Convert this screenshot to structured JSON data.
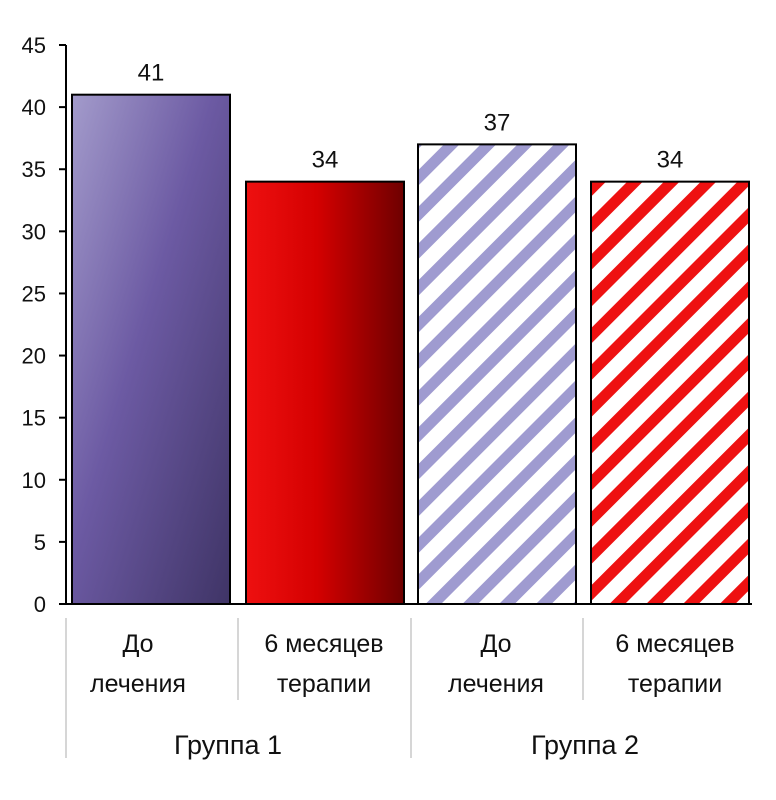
{
  "chart_data": {
    "type": "bar",
    "categories": [
      "До лечения",
      "6 месяцев терапии",
      "До лечения",
      "6 месяцев терапии"
    ],
    "category_lines": [
      [
        "До",
        "лечения"
      ],
      [
        "6 месяцев",
        "терапии"
      ],
      [
        "До",
        "лечения"
      ],
      [
        "6 месяцев",
        "терапии"
      ]
    ],
    "groups": [
      "Группа 1",
      "Группа 2"
    ],
    "values": [
      41,
      34,
      37,
      34
    ],
    "data_labels": [
      "41",
      "34",
      "37",
      "34"
    ],
    "bar_styles": [
      "purple-gradient",
      "red-gradient",
      "purple-hatch",
      "red-hatch"
    ],
    "ylim": [
      0,
      45
    ],
    "yticks": [
      0,
      5,
      10,
      15,
      20,
      25,
      30,
      35,
      40,
      45
    ],
    "title": "",
    "xlabel": "",
    "ylabel": "",
    "grid": false,
    "colors": {
      "purple_light": "#a39bcb",
      "purple_mid": "#6c5aa3",
      "purple_dark": "#3f3466",
      "red_light": "#ee1010",
      "red_mid": "#d40000",
      "red_dark": "#6e0000",
      "hatch_purple": "#9f9bd0",
      "hatch_red": "#ee1111",
      "axis": "#000000",
      "divider": "#c8c8c8"
    }
  }
}
